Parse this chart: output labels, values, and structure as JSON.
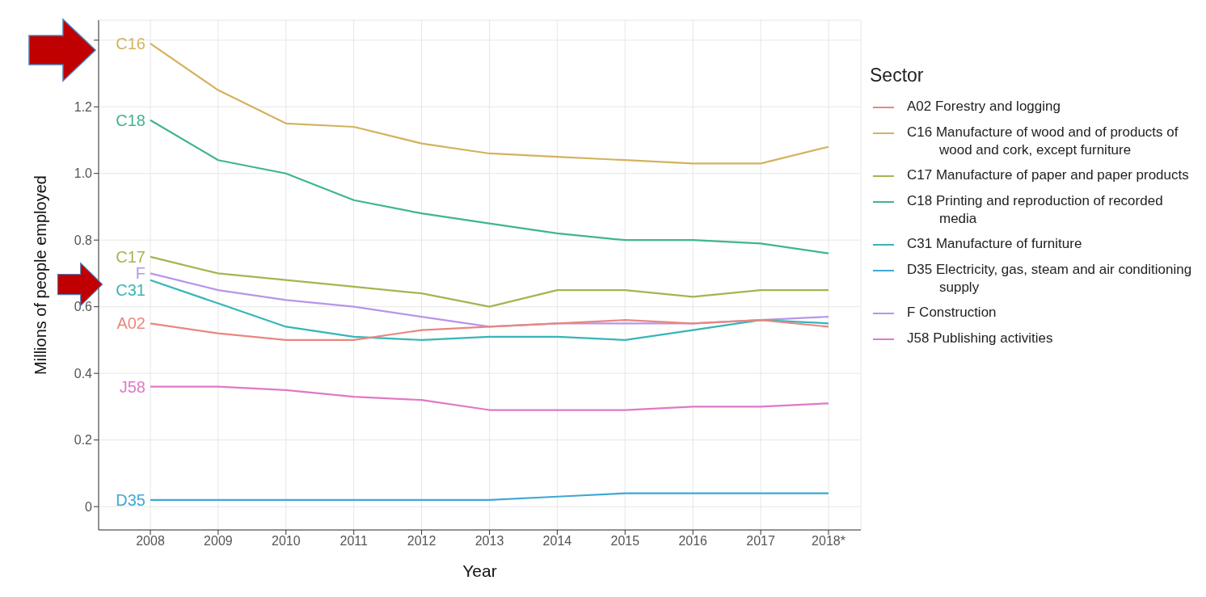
{
  "chart_data": {
    "type": "line",
    "xlabel": "Year",
    "ylabel": "Millions of people employed",
    "legend_title": "Sector",
    "legend": "right",
    "grid": true,
    "categories": [
      "2008",
      "2009",
      "2010",
      "2011",
      "2012",
      "2013",
      "2014",
      "2015",
      "2016",
      "2017",
      "2018*"
    ],
    "ylim": [
      -0.07,
      1.46
    ],
    "yticks": [
      0,
      0.2,
      0.4,
      0.6,
      0.8,
      {
        "value": 1,
        "label": "1.0"
      },
      1.2,
      {
        "value": 1.4,
        "label": null
      }
    ],
    "series": [
      {
        "name": "A02 Forestry and logging",
        "color": "#e8877f",
        "values": [
          0.55,
          0.52,
          0.5,
          0.5,
          0.53,
          0.54,
          0.55,
          0.56,
          0.55,
          0.56,
          0.54
        ]
      },
      {
        "name": "C16 Manufacture of wood and of products of wood and cork, except furniture",
        "color": "#d4b25e",
        "values": [
          1.39,
          1.25,
          1.15,
          1.14,
          1.09,
          1.06,
          1.05,
          1.04,
          1.03,
          1.03,
          1.08
        ]
      },
      {
        "name": "C17 Manufacture of paper and paper products",
        "color": "#a8b34f",
        "values": [
          0.75,
          0.7,
          0.68,
          0.66,
          0.64,
          0.6,
          0.65,
          0.65,
          0.63,
          0.65,
          0.65
        ]
      },
      {
        "name": "C18 Printing and reproduction of recorded media",
        "color": "#3fb58f",
        "values": [
          1.16,
          1.04,
          1.0,
          0.92,
          0.88,
          0.85,
          0.82,
          0.8,
          0.8,
          0.79,
          0.76
        ]
      },
      {
        "name": "C31 Manufacture of furniture",
        "color": "#36b5b8",
        "values": [
          0.68,
          0.61,
          0.54,
          0.51,
          0.5,
          0.51,
          0.51,
          0.5,
          0.53,
          0.56,
          0.55
        ]
      },
      {
        "name": "D35 Electricity, gas, steam and air conditioning supply",
        "color": "#3fa7d6",
        "values": [
          0.02,
          0.02,
          0.02,
          0.02,
          0.02,
          0.02,
          0.03,
          0.04,
          0.04,
          0.04,
          0.04
        ]
      },
      {
        "name": "F Construction",
        "color": "#b895e8",
        "values": [
          0.7,
          0.65,
          0.62,
          0.6,
          0.57,
          0.54,
          0.55,
          0.55,
          0.55,
          0.56,
          0.57
        ]
      },
      {
        "name": "J58 Publishing activities",
        "color": "#e078c8",
        "values": [
          0.36,
          0.36,
          0.35,
          0.33,
          0.32,
          0.29,
          0.29,
          0.29,
          0.3,
          0.3,
          0.31
        ]
      }
    ],
    "annotations": [
      {
        "text": "A02",
        "x": "2008",
        "y": 0.55
      },
      {
        "text": "C16",
        "x": "2008",
        "y": 1.39
      },
      {
        "text": "C17",
        "x": "2008",
        "y": 0.75
      },
      {
        "text": "C18",
        "x": "2008",
        "y": 1.16
      },
      {
        "text": "C31",
        "x": "2008",
        "y": 0.68
      },
      {
        "text": "D35",
        "x": "2008",
        "y": 0.02
      },
      {
        "text": "F",
        "x": "2008",
        "y": 0.7
      },
      {
        "text": "J58",
        "x": "2008",
        "y": 0.36
      }
    ]
  }
}
